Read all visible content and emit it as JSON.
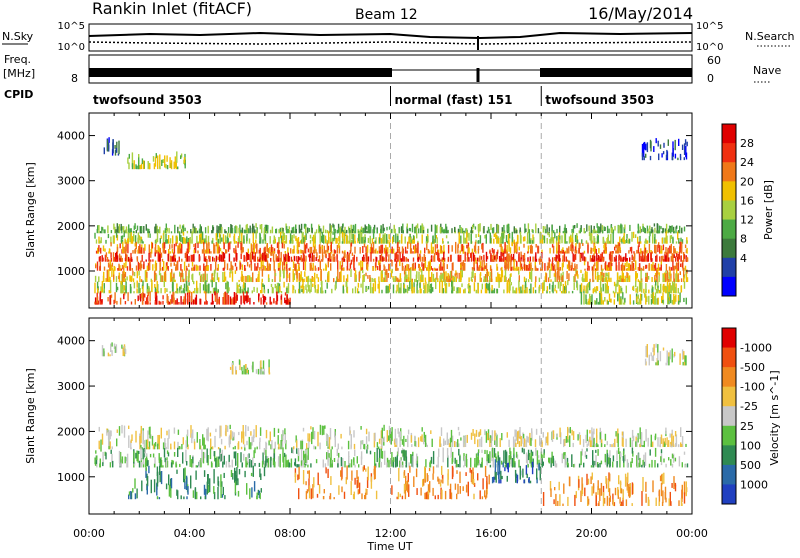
{
  "header": {
    "station": "Rankin Inlet (fitACF)",
    "beam": "Beam 12",
    "date": "16/May/2014"
  },
  "strip": {
    "nsky_label": "N.Sky",
    "nsearch_label": "N.Search",
    "nsky_ticks": [
      "10^5",
      "10^0"
    ],
    "nsearch_ticks": [
      "10^5",
      "10^0"
    ],
    "freq_label": "Freq.",
    "freq_unit": "[MHz]",
    "freq_ticks": [
      "8"
    ],
    "nave_label": "Nave",
    "nave_ticks": [
      "60",
      "0"
    ],
    "cpid_label": "CPID",
    "cpid_segments": [
      {
        "name": "twofsound 3503",
        "start_hour": 0,
        "end_hour": 12
      },
      {
        "name": "normal (fast) 151",
        "start_hour": 12,
        "end_hour": 18
      },
      {
        "name": "twofsound 3503",
        "start_hour": 18,
        "end_hour": 24
      }
    ]
  },
  "axes": {
    "x_label": "Time UT",
    "x_ticks": [
      "00:00",
      "04:00",
      "08:00",
      "12:00",
      "16:00",
      "20:00",
      "00:00"
    ],
    "y_label": "Slant Range [km]",
    "y_ticks": [
      "1000",
      "2000",
      "3000",
      "4000"
    ]
  },
  "chart_data": [
    {
      "type": "heatmap",
      "name": "power",
      "x_range_hours": [
        0,
        24
      ],
      "ylim": [
        180,
        4500
      ],
      "colorbar_label": "Power [dB]",
      "colorbar_ticks": [
        "4",
        "8",
        "12",
        "16",
        "20",
        "24",
        "28"
      ],
      "colors": [
        "#0000ff",
        "#2040a8",
        "#3c7a3c",
        "#4caa44",
        "#a8d040",
        "#f0c000",
        "#f07818",
        "#f03010",
        "#e00000"
      ],
      "band_rows": [
        {
          "y0": 1880,
          "y1": 2060,
          "x0": 0.3,
          "x1": 23.7,
          "level": 3
        },
        {
          "y0": 1650,
          "y1": 1880,
          "x0": 0.2,
          "x1": 23.8,
          "level": 4
        },
        {
          "y0": 1430,
          "y1": 1650,
          "x0": 0.2,
          "x1": 23.8,
          "level": 6
        },
        {
          "y0": 1250,
          "y1": 1430,
          "x0": 0.2,
          "x1": 23.8,
          "level": 7
        },
        {
          "y0": 1050,
          "y1": 1250,
          "x0": 0.2,
          "x1": 23.8,
          "level": 6
        },
        {
          "y0": 800,
          "y1": 1050,
          "x0": 0.2,
          "x1": 23.8,
          "level": 5
        },
        {
          "y0": 550,
          "y1": 800,
          "x0": 0.2,
          "x1": 23.8,
          "level": 4
        },
        {
          "y0": 300,
          "y1": 550,
          "x0": 0.2,
          "x1": 8.0,
          "level": 7
        },
        {
          "y0": 300,
          "y1": 550,
          "x0": 19.5,
          "x1": 23.8,
          "level": 4
        },
        {
          "y0": 3300,
          "y1": 3650,
          "x0": 1.5,
          "x1": 3.8,
          "level": 4
        },
        {
          "y0": 3600,
          "y1": 4100,
          "x0": 0.5,
          "x1": 1.4,
          "level": 1
        },
        {
          "y0": 3500,
          "y1": 3950,
          "x0": 22.0,
          "x1": 23.8,
          "level": 1
        }
      ]
    },
    {
      "type": "heatmap",
      "name": "velocity",
      "x_range_hours": [
        0,
        24
      ],
      "ylim": [
        180,
        4500
      ],
      "colorbar_label": "Velocity [m s^-1]",
      "colorbar_ticks": [
        "1000",
        "500",
        "100",
        "25",
        "-25",
        "-100",
        "-500",
        "-1000"
      ],
      "colors": [
        "#2040c0",
        "#2a6aa8",
        "#2f8a52",
        "#5cc040",
        "#c8c8c8",
        "#f0c040",
        "#f08a20",
        "#f05010",
        "#e00000"
      ],
      "band_rows": [
        {
          "y0": 1650,
          "y1": 2150,
          "x0": 0.2,
          "x1": 12.0,
          "level": 4
        },
        {
          "y0": 1700,
          "y1": 2100,
          "x0": 12.0,
          "x1": 23.8,
          "level": 4
        },
        {
          "y0": 1250,
          "y1": 1650,
          "x0": 0.2,
          "x1": 23.8,
          "level": 3
        },
        {
          "y0": 550,
          "y1": 1250,
          "x0": 1.5,
          "x1": 7.0,
          "level": 2
        },
        {
          "y0": 550,
          "y1": 1250,
          "x0": 8.0,
          "x1": 11.5,
          "level": 6
        },
        {
          "y0": 550,
          "y1": 1250,
          "x0": 12.0,
          "x1": 16.0,
          "level": 6
        },
        {
          "y0": 900,
          "y1": 1400,
          "x0": 16.0,
          "x1": 18.0,
          "level": 1
        },
        {
          "y0": 400,
          "y1": 1100,
          "x0": 18.0,
          "x1": 23.8,
          "level": 6
        },
        {
          "y0": 3700,
          "y1": 4000,
          "x0": 0.5,
          "x1": 1.5,
          "level": 4
        },
        {
          "y0": 3300,
          "y1": 3600,
          "x0": 5.5,
          "x1": 7.2,
          "level": 4
        },
        {
          "y0": 3500,
          "y1": 3950,
          "x0": 22.0,
          "x1": 23.8,
          "level": 4
        }
      ]
    }
  ]
}
